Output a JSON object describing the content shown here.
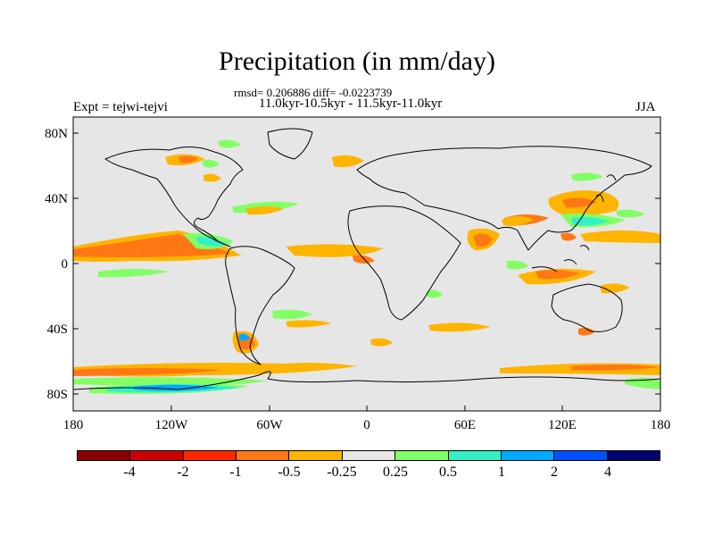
{
  "title": "Precipitation (in mm/day)",
  "stats_line": "rmsd= 0.206886 diff= -0.0223739",
  "period_line": "11.0kyr-10.5kyr - 11.5kyr-11.0kyr",
  "experiment_label": "Expt = tejwi-tejvi",
  "season_label": "JJA",
  "y_ticks": [
    "80N",
    "40N",
    "0",
    "40S",
    "80S"
  ],
  "x_ticks": [
    "180",
    "120W",
    "60W",
    "0",
    "60E",
    "120E",
    "180"
  ],
  "colorbar": {
    "labels": [
      "-4",
      "-2",
      "-1",
      "-0.5",
      "-0.25",
      "0.25",
      "0.5",
      "1",
      "2",
      "4"
    ],
    "colors": [
      "#8b0000",
      "#cd0000",
      "#ff2800",
      "#ff7814",
      "#ffb400",
      "#e6e6e6",
      "#82ff64",
      "#32f0c8",
      "#00aaff",
      "#0050ff",
      "#00006e"
    ]
  },
  "colors": {
    "background_field": "#e6e6e6"
  }
}
